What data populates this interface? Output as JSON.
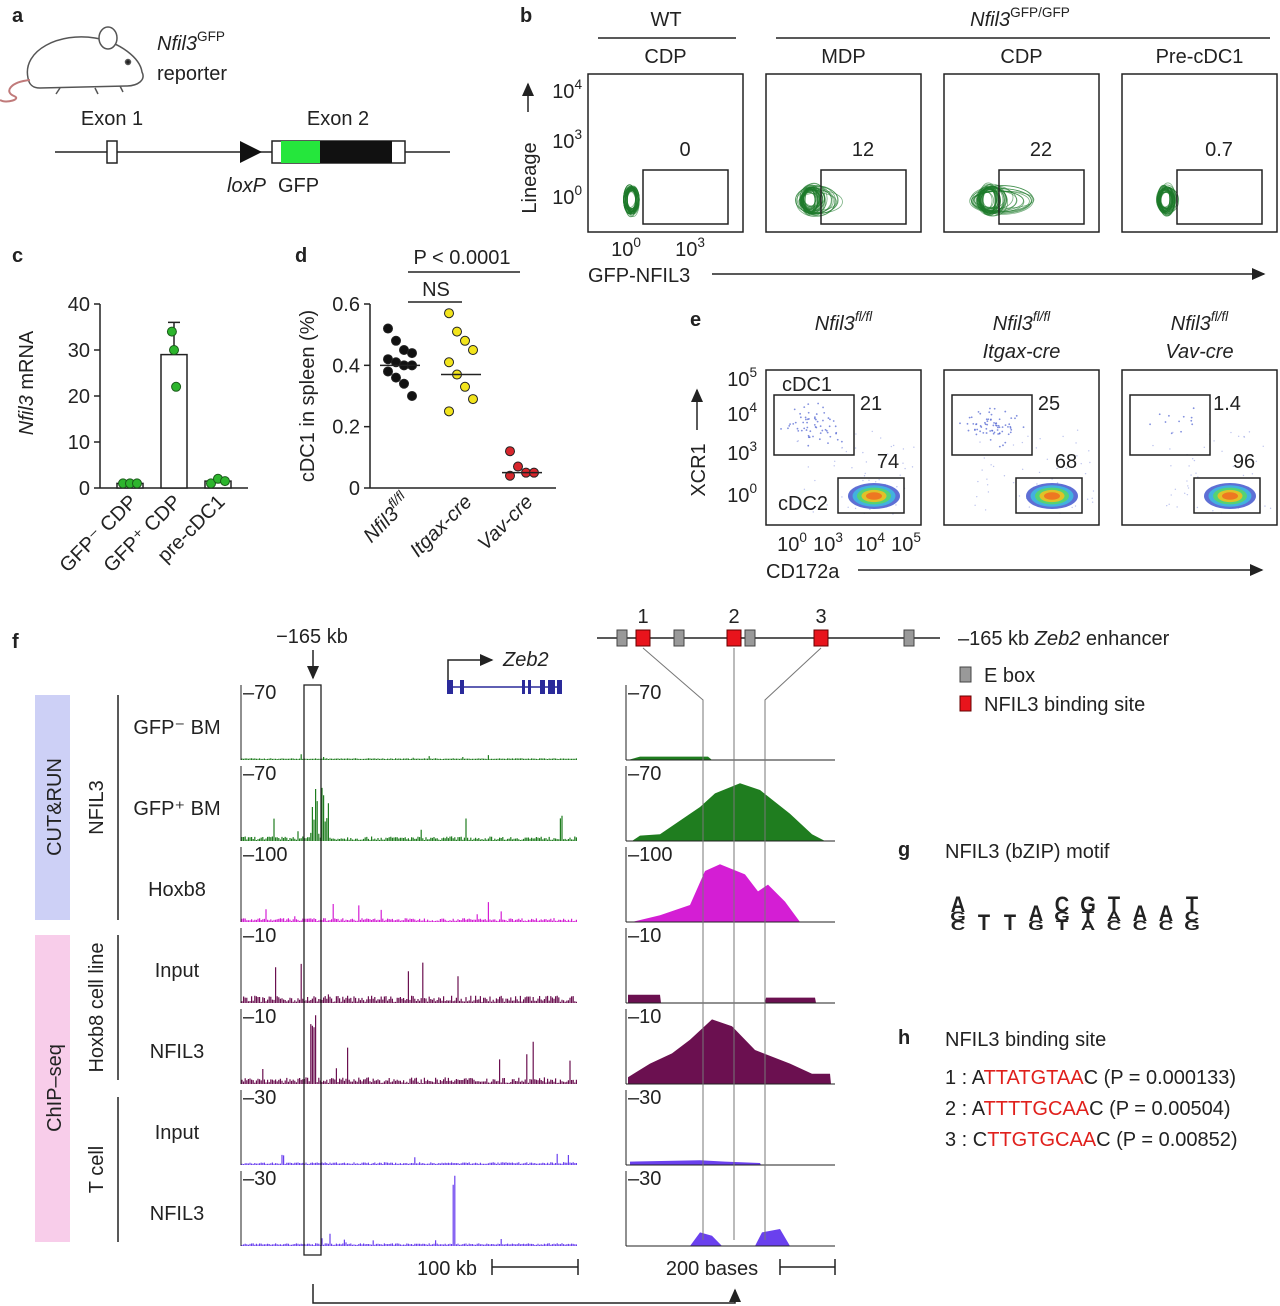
{
  "panels": {
    "a": {
      "letter": "a",
      "gene": "Nfil3",
      "gene_sup": "GFP",
      "reporter": "reporter",
      "exon1": "Exon 1",
      "exon2": "Exon 2",
      "loxp": "loxP",
      "gfp": "GFP"
    },
    "b": {
      "letter": "b",
      "wt": "WT",
      "genotype": "Nfil3",
      "genotype_sup": "GFP/GFP",
      "plots": [
        {
          "title": "CDP",
          "gate": 0
        },
        {
          "title": "MDP",
          "gate": 12
        },
        {
          "title": "CDP",
          "gate": 22
        },
        {
          "title": "Pre-cDC1",
          "gate": 0.7
        }
      ],
      "y_label": "Lineage",
      "x_label": "GFP-NFIL3",
      "yticks": [
        {
          "base": "10",
          "exp": "4"
        },
        {
          "base": "10",
          "exp": "3"
        },
        {
          "base": "10",
          "exp": "0"
        }
      ],
      "xticks": [
        {
          "base": "10",
          "exp": "0"
        },
        {
          "base": "10",
          "exp": "3"
        }
      ]
    },
    "c": {
      "letter": "c",
      "y_label_gene": "Nfil3",
      "y_label_rest": " mRNA",
      "categories": [
        "GFP⁻ CDP",
        "GFP⁺ CDP",
        "pre-cDC1"
      ],
      "values": [
        1,
        29,
        1.5
      ],
      "errors": [
        null,
        7,
        null
      ],
      "points": [
        [
          1,
          1,
          1
        ],
        [
          34,
          30,
          22
        ],
        [
          1,
          2,
          1.5
        ]
      ],
      "ylim": [
        0,
        40
      ],
      "yticks": [
        0,
        10,
        20,
        30,
        40
      ]
    },
    "d": {
      "letter": "d",
      "y_label": "cDC1 in spleen (%)",
      "categories": [
        {
          "gene": "Nfil3",
          "sup": "fl/fl"
        },
        {
          "gene": "Itgax-cre"
        },
        {
          "gene": "Vav-cre"
        }
      ],
      "colors": [
        "#111111",
        "#f2e41c",
        "#d8262c"
      ],
      "points": [
        [
          0.52,
          0.48,
          0.45,
          0.44,
          0.42,
          0.41,
          0.4,
          0.4,
          0.38,
          0.36,
          0.34,
          0.3
        ],
        [
          0.57,
          0.51,
          0.48,
          0.45,
          0.41,
          0.37,
          0.33,
          0.29,
          0.25
        ],
        [
          0.12,
          0.07,
          0.05,
          0.05,
          0.04
        ]
      ],
      "medians": [
        0.4,
        0.37,
        0.05
      ],
      "ylim": [
        0,
        0.6
      ],
      "yticks": [
        0,
        0.2,
        0.4,
        0.6
      ],
      "p_value": "P < 0.0001",
      "ns": "NS"
    },
    "e": {
      "letter": "e",
      "plots": [
        {
          "gene": "Nfil3",
          "sup": "fl/fl",
          "cre": null,
          "cdc1": 21,
          "cdc2": 74
        },
        {
          "gene": "Nfil3",
          "sup": "fl/fl",
          "cre": "Itgax-cre",
          "cdc1": 25,
          "cdc2": 68
        },
        {
          "gene": "Nfil3",
          "sup": "fl/fl",
          "cre": "Vav-cre",
          "cdc1": 1.4,
          "cdc2": 96
        }
      ],
      "gate1": "cDC1",
      "gate2": "cDC2",
      "y_label": "XCR1",
      "x_label": "CD172a",
      "yticks": [
        {
          "base": "10",
          "exp": "5"
        },
        {
          "base": "10",
          "exp": "4"
        },
        {
          "base": "10",
          "exp": "3"
        },
        {
          "base": "10",
          "exp": "0"
        }
      ],
      "xticks": [
        {
          "base": "10",
          "exp": "0"
        },
        {
          "base": "10",
          "exp": "3"
        },
        {
          "base": "10",
          "exp": "4"
        },
        {
          "base": "10",
          "exp": "5"
        }
      ]
    },
    "f": {
      "letter": "f",
      "locus": "−165 kb",
      "gene": "Zeb2",
      "cutrun": "CUT&RUN",
      "chipseq": "ChIP–seq",
      "group_nfil3": "NFIL3",
      "group_hoxb8": "Hoxb8 cell line",
      "group_tcell": "T cell",
      "tracks": [
        {
          "label": "GFP⁻ BM",
          "scale": "–70"
        },
        {
          "label": "GFP⁺ BM",
          "scale": "–70"
        },
        {
          "label": "Hoxb8",
          "scale": "–100"
        },
        {
          "label": "Input",
          "scale": "–10"
        },
        {
          "label": "NFIL3",
          "scale": "–10"
        },
        {
          "label": "Input",
          "scale": "–30"
        },
        {
          "label": "NFIL3",
          "scale": "–30"
        }
      ],
      "scale_left": "100 kb",
      "scale_right": "200 bases",
      "site_numbers": [
        "1",
        "2",
        "3"
      ],
      "enhancer_pre": "–165 kb ",
      "enhancer_gene": "Zeb2",
      "enhancer_post": " enhancer",
      "legend_ebox": "E box",
      "legend_site": "NFIL3 binding site"
    },
    "g": {
      "letter": "g",
      "title": "NFIL3 (bZIP) motif",
      "motif": [
        [
          "A",
          "G",
          "C"
        ],
        [
          "T"
        ],
        [
          "T"
        ],
        [
          "A",
          "G"
        ],
        [
          "C",
          "G",
          "T"
        ],
        [
          "G",
          "T",
          "A"
        ],
        [
          "T",
          "A",
          "C"
        ],
        [
          "A",
          "C"
        ],
        [
          "A",
          "C"
        ],
        [
          "T",
          "C",
          "G"
        ]
      ]
    },
    "h": {
      "letter": "h",
      "title": "NFIL3 binding site",
      "sites": [
        {
          "index": "1 : ",
          "prefix": "A",
          "core": "TTATGTAA",
          "suffix": "C ",
          "stat": "(P = 0.000133)"
        },
        {
          "index": "2 : ",
          "prefix": "A",
          "core": "TTTTGCAA",
          "suffix": "C ",
          "stat": "(P = 0.00504)"
        },
        {
          "index": "3 : ",
          "prefix": "C",
          "core": "TTGTGCAA",
          "suffix": "C ",
          "stat": "(P = 0.00852)"
        }
      ]
    }
  }
}
